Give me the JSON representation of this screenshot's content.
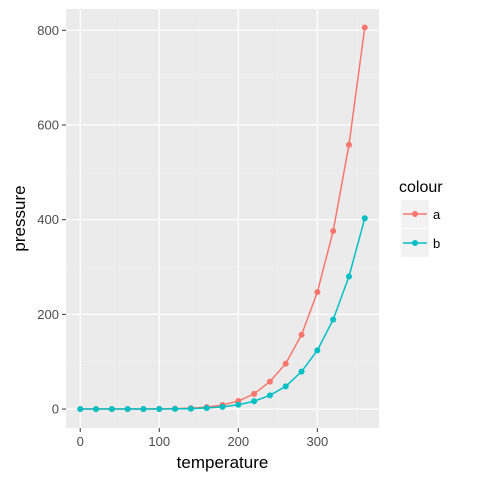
{
  "chart_data": {
    "type": "line",
    "xlabel": "temperature",
    "ylabel": "pressure",
    "xlim": [
      -18,
      378
    ],
    "ylim": [
      -40,
      845
    ],
    "x_ticks": [
      0,
      100,
      200,
      300
    ],
    "y_ticks": [
      0,
      200,
      400,
      600,
      800
    ],
    "grid": true,
    "legend": {
      "title": "colour",
      "position": "right"
    },
    "x": [
      0,
      20,
      40,
      60,
      80,
      100,
      120,
      140,
      160,
      180,
      200,
      220,
      240,
      260,
      280,
      300,
      320,
      340,
      360
    ],
    "series": [
      {
        "name": "a",
        "color": "#F8766D",
        "values": [
          0,
          0,
          0,
          0,
          0,
          0.3,
          0.8,
          2,
          4,
          8.5,
          17,
          32,
          58,
          96,
          157,
          247,
          376,
          558,
          806
        ]
      },
      {
        "name": "b",
        "color": "#00BFC4",
        "values": [
          0,
          0,
          0,
          0,
          0,
          0.1,
          0.4,
          1,
          2.2,
          4.5,
          9,
          16.5,
          29,
          48,
          79,
          124,
          189,
          280,
          403
        ]
      }
    ]
  }
}
